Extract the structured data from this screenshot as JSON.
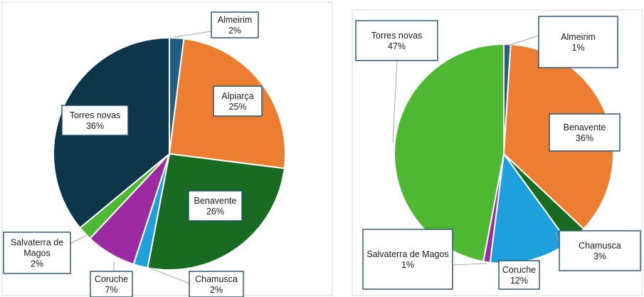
{
  "chart_data": [
    {
      "type": "pie",
      "title": "",
      "categories": [
        "Almeirim",
        "Alpiarça",
        "Benavente",
        "Chamusca",
        "Coruche",
        "Salvaterra de Magos",
        "Torres novas"
      ],
      "values": [
        2,
        25,
        26,
        2,
        7,
        2,
        36
      ],
      "value_labels": [
        "2%",
        "25%",
        "26%",
        "2%",
        "7%",
        "2%",
        "36%"
      ],
      "colors": [
        "#1f5f86",
        "#ed7d31",
        "#1a6b22",
        "#1ea0dd",
        "#9c2aa0",
        "#4eb832",
        "#0e364b"
      ],
      "legend": "none"
    },
    {
      "type": "pie",
      "title": "",
      "categories": [
        "Almeirim",
        "Benavente",
        "Chamusca",
        "Coruche",
        "Salvaterra de Magos",
        "Torres novas"
      ],
      "values": [
        1,
        36,
        3,
        12,
        1,
        47
      ],
      "value_labels": [
        "1%",
        "36%",
        "3%",
        "12%",
        "1%",
        "47%"
      ],
      "colors": [
        "#1f5f86",
        "#ed7d31",
        "#1a6b22",
        "#1ea0dd",
        "#9c2aa0",
        "#4eb832"
      ],
      "legend": "none"
    }
  ]
}
